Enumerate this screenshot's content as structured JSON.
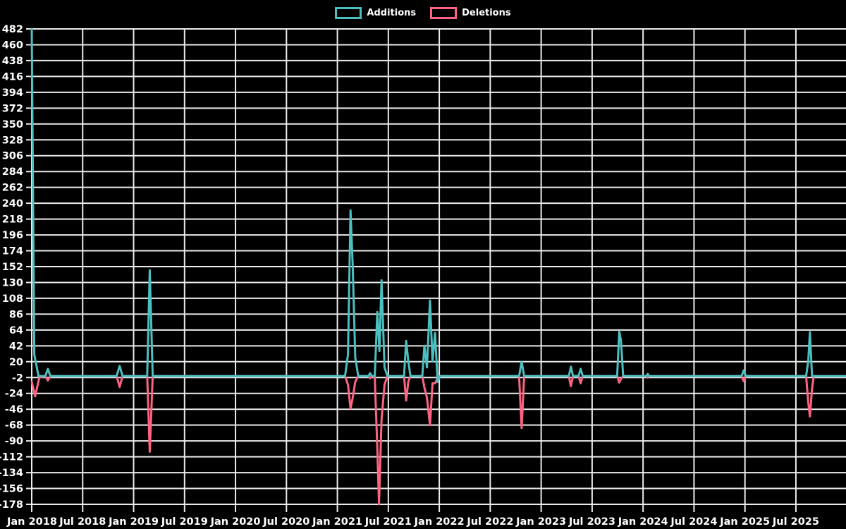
{
  "legend": [
    {
      "label": "Additions",
      "color": "#4bc0c0"
    },
    {
      "label": "Deletions",
      "color": "#ff6384"
    }
  ],
  "colors": {
    "background": "#000000",
    "grid": "#ebebeb",
    "tick_text": "#ffffff",
    "additions": "#4bc0c0",
    "deletions": "#ff6384"
  },
  "chart_data": {
    "type": "line",
    "title": "",
    "xlabel": "",
    "ylabel": "",
    "grid": true,
    "legend_position": "top-center",
    "ylim": [
      -178,
      482
    ],
    "y_ticks": [
      482,
      460,
      438,
      416,
      394,
      372,
      350,
      328,
      306,
      284,
      262,
      240,
      218,
      196,
      174,
      152,
      130,
      108,
      86,
      64,
      42,
      20,
      -2,
      -24,
      -46,
      -68,
      -90,
      -112,
      -134,
      -156,
      -178
    ],
    "x_ticks": [
      "Jan 2018",
      "Jul 2018",
      "Jan 2019",
      "Jul 2019",
      "Jan 2020",
      "Jul 2020",
      "Jan 2021",
      "Jul 2021",
      "Jan 2022",
      "Jul 2022",
      "Jan 2023",
      "Jul 2023",
      "Jan 2024",
      "Jul 2024",
      "Jan 2025",
      "Jul 2025"
    ],
    "x_unit": "months since Jan 2018",
    "xlim_months": [
      0,
      95.9
    ],
    "x_tick_interval_months": 6,
    "series": [
      {
        "name": "Additions",
        "color": "#4bc0c0",
        "points": [
          [
            0,
            482
          ],
          [
            0.3,
            30
          ],
          [
            0.8,
            0
          ],
          [
            1.6,
            0
          ],
          [
            1.9,
            10
          ],
          [
            2.2,
            0
          ],
          [
            10.0,
            0
          ],
          [
            10.35,
            14
          ],
          [
            10.7,
            0
          ],
          [
            13.6,
            0
          ],
          [
            13.9,
            147
          ],
          [
            14.25,
            0
          ],
          [
            36.9,
            0
          ],
          [
            37.25,
            30
          ],
          [
            37.55,
            230
          ],
          [
            37.8,
            153
          ],
          [
            38.1,
            26
          ],
          [
            38.45,
            0
          ],
          [
            39.65,
            0
          ],
          [
            39.85,
            4
          ],
          [
            40.05,
            0
          ],
          [
            40.4,
            0
          ],
          [
            40.7,
            89
          ],
          [
            40.95,
            35
          ],
          [
            41.2,
            133
          ],
          [
            41.55,
            12
          ],
          [
            41.9,
            0
          ],
          [
            43.85,
            0
          ],
          [
            44.1,
            49
          ],
          [
            44.35,
            21
          ],
          [
            44.6,
            0
          ],
          [
            46.0,
            0
          ],
          [
            46.25,
            42
          ],
          [
            46.55,
            12
          ],
          [
            46.9,
            105
          ],
          [
            47.2,
            20
          ],
          [
            47.5,
            60
          ],
          [
            47.8,
            -8
          ],
          [
            48.1,
            0
          ],
          [
            57.4,
            0
          ],
          [
            57.7,
            20
          ],
          [
            58.0,
            0
          ],
          [
            63.25,
            0
          ],
          [
            63.5,
            13
          ],
          [
            63.75,
            0
          ],
          [
            64.4,
            0
          ],
          [
            64.65,
            10
          ],
          [
            64.9,
            0
          ],
          [
            68.95,
            0
          ],
          [
            69.2,
            62
          ],
          [
            69.4,
            49
          ],
          [
            69.65,
            0
          ],
          [
            72.4,
            0
          ],
          [
            72.55,
            3
          ],
          [
            72.7,
            0
          ],
          [
            83.6,
            0
          ],
          [
            83.85,
            8
          ],
          [
            84.1,
            0
          ],
          [
            91.2,
            0
          ],
          [
            91.45,
            20
          ],
          [
            91.65,
            61
          ],
          [
            91.9,
            0
          ],
          [
            95.9,
            0
          ]
        ]
      },
      {
        "name": "Deletions",
        "color": "#ff6384",
        "points": [
          [
            0,
            -8
          ],
          [
            0.4,
            -28
          ],
          [
            0.9,
            -2
          ],
          [
            1.6,
            0
          ],
          [
            1.9,
            -6
          ],
          [
            2.2,
            0
          ],
          [
            10.0,
            0
          ],
          [
            10.35,
            -15
          ],
          [
            10.7,
            0
          ],
          [
            13.6,
            0
          ],
          [
            13.9,
            -105
          ],
          [
            14.25,
            0
          ],
          [
            36.9,
            0
          ],
          [
            37.25,
            -12
          ],
          [
            37.55,
            -45
          ],
          [
            37.8,
            -30
          ],
          [
            38.1,
            -8
          ],
          [
            38.45,
            0
          ],
          [
            39.65,
            0
          ],
          [
            39.85,
            -3
          ],
          [
            40.05,
            0
          ],
          [
            40.4,
            -2
          ],
          [
            40.7,
            -100
          ],
          [
            40.9,
            -178
          ],
          [
            41.2,
            -60
          ],
          [
            41.55,
            -12
          ],
          [
            41.9,
            0
          ],
          [
            43.85,
            0
          ],
          [
            44.1,
            -34
          ],
          [
            44.35,
            -8
          ],
          [
            44.6,
            0
          ],
          [
            46.0,
            0
          ],
          [
            46.25,
            -16
          ],
          [
            46.55,
            -30
          ],
          [
            46.9,
            -68
          ],
          [
            47.2,
            -10
          ],
          [
            47.5,
            -10
          ],
          [
            47.8,
            -3
          ],
          [
            48.1,
            0
          ],
          [
            57.4,
            0
          ],
          [
            57.7,
            -72
          ],
          [
            58.0,
            0
          ],
          [
            63.25,
            0
          ],
          [
            63.5,
            -14
          ],
          [
            63.75,
            0
          ],
          [
            64.4,
            0
          ],
          [
            64.65,
            -10
          ],
          [
            64.9,
            0
          ],
          [
            68.95,
            0
          ],
          [
            69.2,
            -9
          ],
          [
            69.4,
            -4
          ],
          [
            69.65,
            0
          ],
          [
            72.4,
            0
          ],
          [
            72.55,
            -2
          ],
          [
            72.7,
            0
          ],
          [
            83.6,
            0
          ],
          [
            83.85,
            -7
          ],
          [
            84.1,
            0
          ],
          [
            91.2,
            0
          ],
          [
            91.45,
            -36
          ],
          [
            91.65,
            -56
          ],
          [
            91.9,
            -18
          ],
          [
            92.1,
            0
          ],
          [
            95.9,
            0
          ]
        ]
      }
    ]
  }
}
